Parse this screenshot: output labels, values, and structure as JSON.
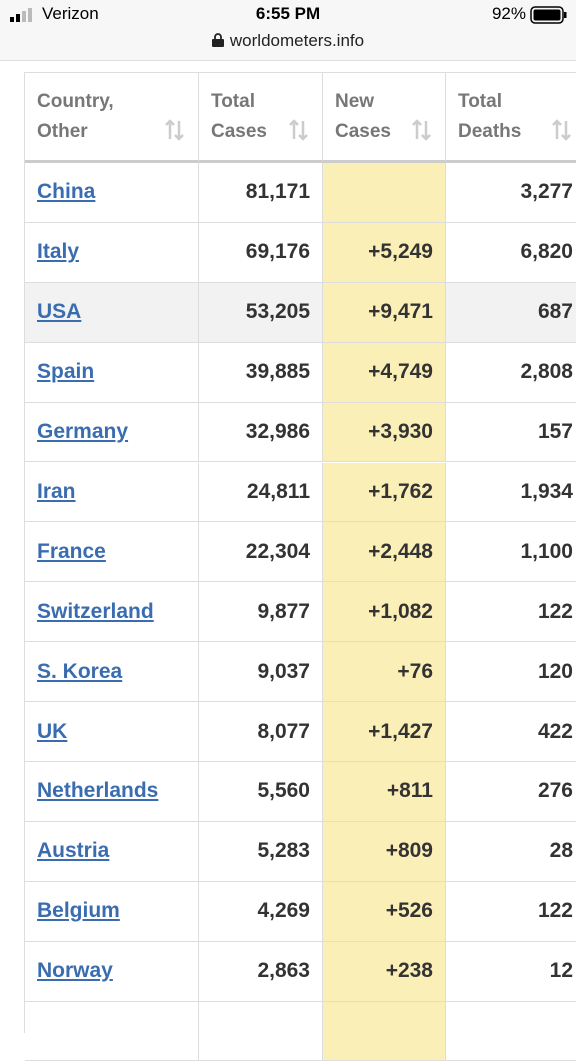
{
  "status_bar": {
    "carrier": "Verizon",
    "time": "6:55 PM",
    "battery": "92%"
  },
  "url": "worldometers.info",
  "table": {
    "headers": [
      "Country, Other",
      "Total Cases",
      "New Cases",
      "Total Deaths"
    ],
    "rows": [
      [
        "China",
        "81,171",
        null,
        "3,277"
      ],
      [
        "Italy",
        "69,176",
        "+5,249",
        "6,820"
      ],
      [
        "USA",
        "53,205",
        "+9,471",
        "687"
      ],
      [
        "Spain",
        "39,885",
        "+4,749",
        "2,808"
      ],
      [
        "Germany",
        "32,986",
        "+3,930",
        "157"
      ],
      [
        "Iran",
        "24,811",
        "+1,762",
        "1,934"
      ],
      [
        "France",
        "22,304",
        "+2,448",
        "1,100"
      ],
      [
        "Switzerland",
        "9,877",
        "+1,082",
        "122"
      ],
      [
        "S. Korea",
        "9,037",
        "+76",
        "120"
      ],
      [
        "UK",
        "8,077",
        "+1,427",
        "422"
      ],
      [
        "Netherlands",
        "5,560",
        "+811",
        "276"
      ],
      [
        "Austria",
        "5,283",
        "+809",
        "28"
      ],
      [
        "Belgium",
        "4,269",
        "+526",
        "122"
      ],
      [
        "Norway",
        "2,863",
        "+238",
        "12"
      ]
    ]
  }
}
